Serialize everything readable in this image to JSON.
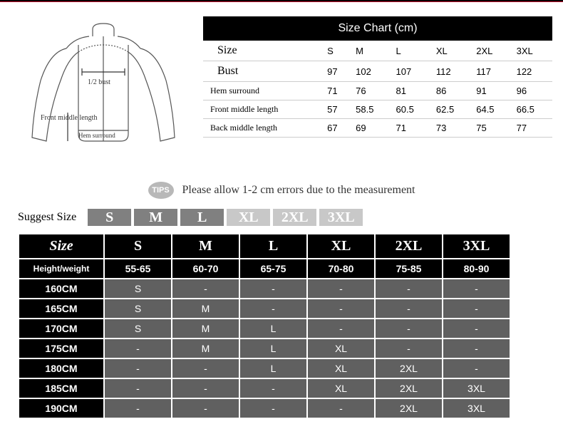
{
  "top_bar_color": "#c8102e",
  "jacket_labels": {
    "half_bust": "1/2 bust",
    "front_middle": "Front middle length",
    "hem_surround": "Hem surround"
  },
  "size_chart": {
    "title": "Size Chart (cm)",
    "columns": [
      "S",
      "M",
      "L",
      "XL",
      "2XL",
      "3XL"
    ],
    "rows": [
      {
        "label": "Size",
        "bold": true,
        "values": [
          "S",
          "M",
          "L",
          "XL",
          "2XL",
          "3XL"
        ]
      },
      {
        "label": "Bust",
        "bold": true,
        "values": [
          "97",
          "102",
          "107",
          "112",
          "117",
          "122"
        ]
      },
      {
        "label": "Hem surround",
        "bold": false,
        "values": [
          "71",
          "76",
          "81",
          "86",
          "91",
          "96"
        ]
      },
      {
        "label": "Front middle length",
        "bold": false,
        "values": [
          "57",
          "58.5",
          "60.5",
          "62.5",
          "64.5",
          "66.5"
        ]
      },
      {
        "label": "Back middle length",
        "bold": false,
        "values": [
          "67",
          "69",
          "71",
          "73",
          "75",
          "77"
        ]
      }
    ]
  },
  "tips": {
    "badge": "TIPS",
    "text": "Please allow 1-2 cm errors due to the measurement"
  },
  "suggest": {
    "label": "Suggest Size",
    "pills": [
      {
        "text": "S",
        "light": false
      },
      {
        "text": "M",
        "light": false
      },
      {
        "text": "L",
        "light": false
      },
      {
        "text": "XL",
        "light": true
      },
      {
        "text": "2XL",
        "light": true
      },
      {
        "text": "3XL",
        "light": true
      }
    ]
  },
  "lower": {
    "header": [
      "Size",
      "S",
      "M",
      "L",
      "XL",
      "2XL",
      "3XL"
    ],
    "weight_row": [
      "Height/weight",
      "55-65",
      "60-70",
      "65-75",
      "70-80",
      "75-85",
      "80-90"
    ],
    "rows": [
      [
        "160CM",
        "S",
        "-",
        "-",
        "-",
        "-",
        "-"
      ],
      [
        "165CM",
        "S",
        "M",
        "-",
        "-",
        "-",
        "-"
      ],
      [
        "170CM",
        "S",
        "M",
        "L",
        "-",
        "-",
        "-"
      ],
      [
        "175CM",
        "-",
        "M",
        "L",
        "XL",
        "-",
        "-"
      ],
      [
        "180CM",
        "-",
        "-",
        "L",
        "XL",
        "2XL",
        "-"
      ],
      [
        "185CM",
        "-",
        "-",
        "-",
        "XL",
        "2XL",
        "3XL"
      ],
      [
        "190CM",
        "-",
        "-",
        "-",
        "-",
        "2XL",
        "3XL"
      ]
    ]
  }
}
